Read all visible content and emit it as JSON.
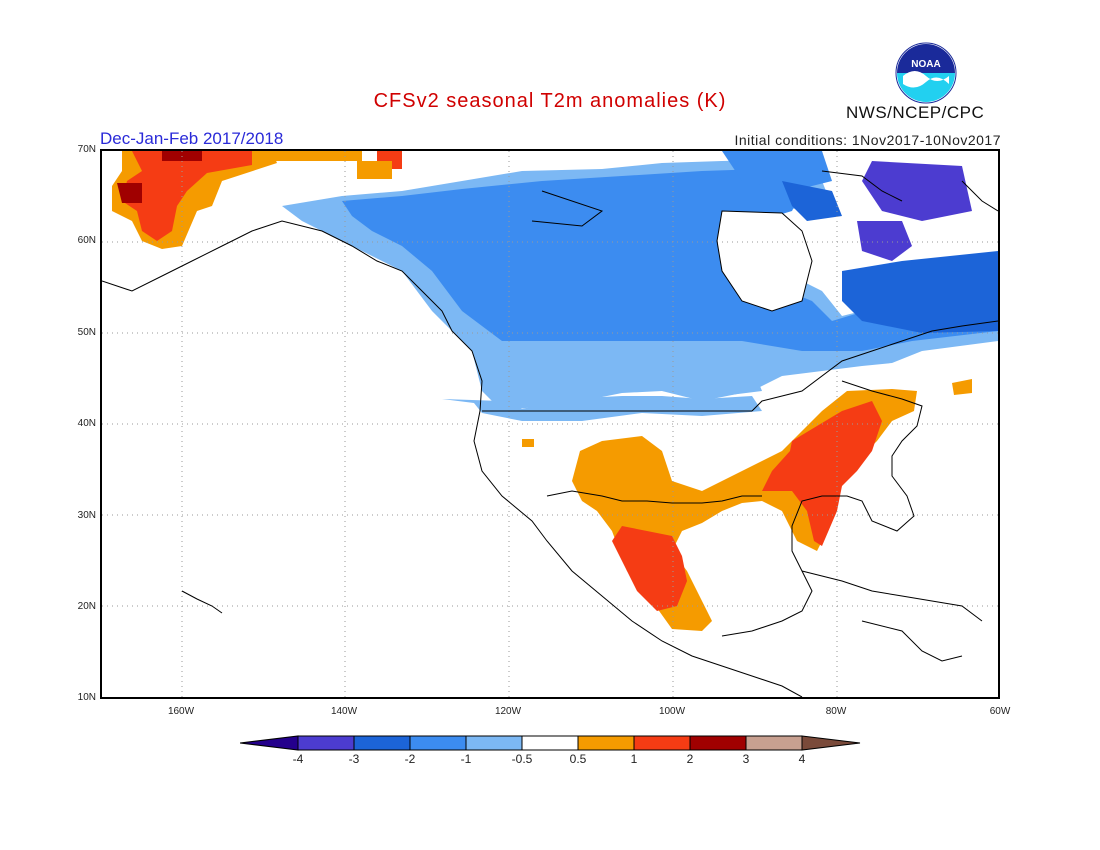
{
  "header": {
    "title": "CFSv2 seasonal T2m anomalies (K)",
    "season": "Dec-Jan-Feb 2017/2018",
    "initial_conditions": "Initial conditions: 1Nov2017-10Nov2017",
    "agency": "NWS/NCEP/CPC",
    "logo_text": "NOAA"
  },
  "map": {
    "lat_labels": [
      "70N",
      "60N",
      "50N",
      "40N",
      "30N",
      "20N",
      "10N"
    ],
    "lon_labels": [
      "160W",
      "140W",
      "120W",
      "100W",
      "80W",
      "60W"
    ],
    "colors": {
      "lt_m4": "#24008c",
      "m4_m3": "#4c3cd0",
      "m3_m2": "#1c64d8",
      "m2_m1": "#3c8cf0",
      "m1_m05": "#7cb8f4",
      "near_zero": "#ffffff",
      "p05_p1": "#f59b00",
      "p1_p2": "#f53c14",
      "p2_p3": "#a00000",
      "p3_p4": "#c8a090",
      "gt_p4": "#7a4a3a",
      "land_outline": "#000000",
      "grid": "#9a9a9a"
    }
  },
  "colorbar": {
    "labels": [
      "-4",
      "-3",
      "-2",
      "-1",
      "-0.5",
      "0.5",
      "1",
      "2",
      "3",
      "4"
    ]
  }
}
